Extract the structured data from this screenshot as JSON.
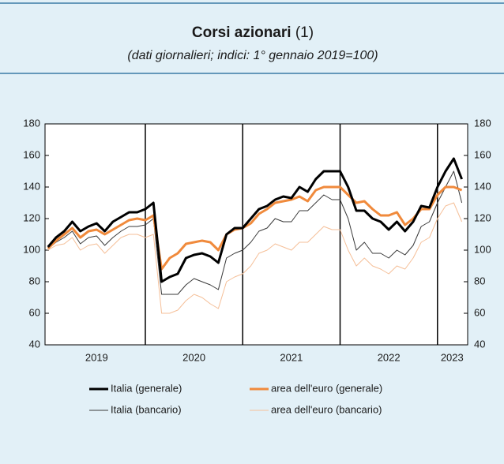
{
  "chart_data": {
    "type": "line",
    "title": "Corsi azionari",
    "title_note": "(1)",
    "subtitle": "(dati giornalieri; indici: 1° gennaio 2019=100)",
    "x": [
      2019.0,
      2019.083,
      2019.167,
      2019.25,
      2019.333,
      2019.417,
      2019.5,
      2019.583,
      2019.667,
      2019.75,
      2019.833,
      2019.917,
      2020.0,
      2020.083,
      2020.167,
      2020.25,
      2020.333,
      2020.417,
      2020.5,
      2020.583,
      2020.667,
      2020.75,
      2020.833,
      2020.917,
      2021.0,
      2021.083,
      2021.167,
      2021.25,
      2021.333,
      2021.417,
      2021.5,
      2021.583,
      2021.667,
      2021.75,
      2021.833,
      2021.917,
      2022.0,
      2022.083,
      2022.167,
      2022.25,
      2022.333,
      2022.417,
      2022.5,
      2022.583,
      2022.667,
      2022.75,
      2022.833,
      2022.917,
      2023.0,
      2023.083,
      2023.167,
      2023.25
    ],
    "series": [
      {
        "name": "Italia (generale)",
        "color": "#000000",
        "width": 3,
        "values": [
          102,
          108,
          112,
          118,
          112,
          115,
          117,
          112,
          118,
          121,
          124,
          124,
          126,
          130,
          80,
          83,
          85,
          95,
          97,
          98,
          96,
          92,
          110,
          114,
          114,
          120,
          126,
          128,
          132,
          134,
          133,
          140,
          137,
          145,
          150,
          150,
          150,
          140,
          125,
          125,
          120,
          118,
          113,
          118,
          112,
          118,
          128,
          127,
          140,
          150,
          158,
          145
        ]
      },
      {
        "name": "area dell'euro (generale)",
        "color": "#f08a3c",
        "width": 3,
        "values": [
          101,
          106,
          110,
          114,
          108,
          112,
          113,
          110,
          113,
          116,
          119,
          120,
          119,
          122,
          88,
          95,
          98,
          104,
          105,
          106,
          105,
          100,
          110,
          113,
          114,
          117,
          123,
          126,
          130,
          131,
          132,
          134,
          131,
          138,
          140,
          140,
          140,
          135,
          130,
          131,
          126,
          122,
          122,
          124,
          116,
          120,
          126,
          126,
          135,
          140,
          140,
          138
        ]
      },
      {
        "name": "Italia (bancario)",
        "color": "#3a3a3a",
        "width": 1,
        "values": [
          101,
          105,
          108,
          112,
          104,
          108,
          109,
          103,
          108,
          112,
          115,
          115,
          116,
          120,
          72,
          72,
          72,
          78,
          82,
          80,
          78,
          75,
          95,
          98,
          100,
          105,
          112,
          114,
          120,
          118,
          118,
          125,
          125,
          130,
          135,
          132,
          132,
          120,
          100,
          105,
          98,
          98,
          95,
          100,
          97,
          103,
          115,
          118,
          130,
          140,
          150,
          130
        ]
      },
      {
        "name": "area dell'euro (bancario)",
        "color": "#f5bf98",
        "width": 1,
        "values": [
          100,
          103,
          104,
          108,
          100,
          103,
          104,
          98,
          103,
          108,
          110,
          110,
          108,
          110,
          60,
          60,
          62,
          68,
          72,
          70,
          66,
          63,
          80,
          83,
          85,
          90,
          98,
          100,
          104,
          102,
          100,
          105,
          105,
          110,
          115,
          113,
          113,
          100,
          90,
          95,
          90,
          88,
          85,
          90,
          88,
          95,
          105,
          108,
          120,
          128,
          130,
          118
        ]
      }
    ],
    "xlim": [
      2018.97,
      2023.31
    ],
    "xticks": [
      {
        "value": 2019.5,
        "label": "2019"
      },
      {
        "value": 2020.5,
        "label": "2020"
      },
      {
        "value": 2021.5,
        "label": "2021"
      },
      {
        "value": 2022.5,
        "label": "2022"
      },
      {
        "value": 2023.15,
        "label": "2023"
      }
    ],
    "x_separators": [
      2020,
      2021,
      2022,
      2023
    ],
    "ylim": [
      40,
      180
    ],
    "yticks": [
      40,
      60,
      80,
      100,
      120,
      140,
      160,
      180
    ]
  }
}
